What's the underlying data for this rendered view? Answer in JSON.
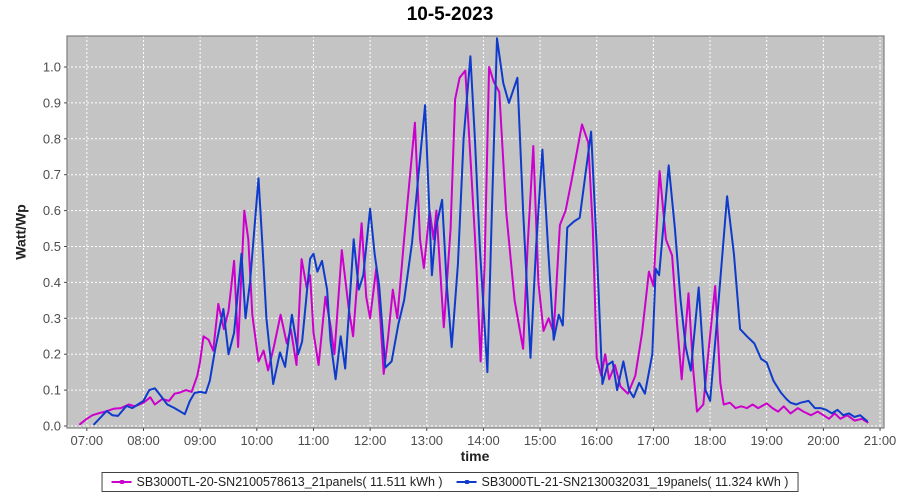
{
  "title": "10-5-2023",
  "colors": {
    "plot_background": "#C4C4C4",
    "grid": "#FFFFFF",
    "plot_border": "#7F7F7F",
    "tick_text": "#4D4D4D",
    "series_magenta": "#CC00CC",
    "series_blue": "#0F3BCC"
  },
  "chart_data": {
    "type": "line",
    "title": "10-5-2023",
    "xlabel": "time",
    "ylabel": "Watt/Wp",
    "xlim_hours": [
      6.65,
      21.07
    ],
    "ylim": [
      0,
      1.086
    ],
    "grid": true,
    "grid_style": "white-dashed",
    "legend_position": "bottom",
    "x_ticks": {
      "hours": [
        7,
        8,
        9,
        10,
        11,
        12,
        13,
        14,
        15,
        16,
        17,
        18,
        19,
        20,
        21
      ],
      "labels": [
        "07:00",
        "08:00",
        "09:00",
        "10:00",
        "11:00",
        "12:00",
        "13:00",
        "14:00",
        "15:00",
        "16:00",
        "17:00",
        "18:00",
        "19:00",
        "20:00",
        "21:00"
      ]
    },
    "y_ticks": {
      "values": [
        0,
        0.1,
        0.2,
        0.3,
        0.4,
        0.5,
        0.6,
        0.7,
        0.8,
        0.9,
        1.0
      ],
      "labels": [
        "0.0",
        "0.1",
        "0.2",
        "0.3",
        "0.4",
        "0.5",
        "0.6",
        "0.7",
        "0.8",
        "0.9",
        "1.0"
      ]
    },
    "series": [
      {
        "name": "SB3000TL-20-SN2100578613_21panels( 11.511 kWh )",
        "color": "#CC00CC",
        "points": [
          [
            6.88,
            0.005
          ],
          [
            7.0,
            0.02
          ],
          [
            7.1,
            0.03
          ],
          [
            7.2,
            0.035
          ],
          [
            7.33,
            0.04
          ],
          [
            7.47,
            0.048
          ],
          [
            7.6,
            0.05
          ],
          [
            7.74,
            0.06
          ],
          [
            7.85,
            0.055
          ],
          [
            8.0,
            0.065
          ],
          [
            8.12,
            0.08
          ],
          [
            8.2,
            0.06
          ],
          [
            8.33,
            0.075
          ],
          [
            8.45,
            0.07
          ],
          [
            8.55,
            0.09
          ],
          [
            8.64,
            0.093
          ],
          [
            8.75,
            0.1
          ],
          [
            8.85,
            0.095
          ],
          [
            8.95,
            0.14
          ],
          [
            9.0,
            0.18
          ],
          [
            9.06,
            0.25
          ],
          [
            9.15,
            0.24
          ],
          [
            9.23,
            0.21
          ],
          [
            9.32,
            0.34
          ],
          [
            9.42,
            0.27
          ],
          [
            9.5,
            0.32
          ],
          [
            9.6,
            0.46
          ],
          [
            9.67,
            0.22
          ],
          [
            9.78,
            0.6
          ],
          [
            9.85,
            0.52
          ],
          [
            9.92,
            0.31
          ],
          [
            10.03,
            0.18
          ],
          [
            10.12,
            0.21
          ],
          [
            10.2,
            0.155
          ],
          [
            10.3,
            0.22
          ],
          [
            10.42,
            0.31
          ],
          [
            10.53,
            0.23
          ],
          [
            10.6,
            0.27
          ],
          [
            10.7,
            0.17
          ],
          [
            10.79,
            0.465
          ],
          [
            10.88,
            0.385
          ],
          [
            10.94,
            0.42
          ],
          [
            11.0,
            0.26
          ],
          [
            11.09,
            0.17
          ],
          [
            11.21,
            0.36
          ],
          [
            11.3,
            0.28
          ],
          [
            11.37,
            0.2
          ],
          [
            11.5,
            0.49
          ],
          [
            11.62,
            0.33
          ],
          [
            11.7,
            0.25
          ],
          [
            11.85,
            0.565
          ],
          [
            11.93,
            0.36
          ],
          [
            12.0,
            0.3
          ],
          [
            12.11,
            0.44
          ],
          [
            12.18,
            0.3
          ],
          [
            12.24,
            0.145
          ],
          [
            12.32,
            0.25
          ],
          [
            12.4,
            0.38
          ],
          [
            12.48,
            0.3
          ],
          [
            12.6,
            0.52
          ],
          [
            12.79,
            0.845
          ],
          [
            12.88,
            0.52
          ],
          [
            12.95,
            0.44
          ],
          [
            13.05,
            0.6
          ],
          [
            13.12,
            0.52
          ],
          [
            13.17,
            0.6
          ],
          [
            13.3,
            0.275
          ],
          [
            13.42,
            0.55
          ],
          [
            13.5,
            0.91
          ],
          [
            13.58,
            0.97
          ],
          [
            13.68,
            0.99
          ],
          [
            13.78,
            0.72
          ],
          [
            13.86,
            0.5
          ],
          [
            13.95,
            0.18
          ],
          [
            14.02,
            0.45
          ],
          [
            14.1,
            1.0
          ],
          [
            14.18,
            0.96
          ],
          [
            14.28,
            0.93
          ],
          [
            14.4,
            0.6
          ],
          [
            14.55,
            0.35
          ],
          [
            14.7,
            0.215
          ],
          [
            14.78,
            0.5
          ],
          [
            14.88,
            0.78
          ],
          [
            14.97,
            0.4
          ],
          [
            15.06,
            0.265
          ],
          [
            15.15,
            0.3
          ],
          [
            15.24,
            0.26
          ],
          [
            15.35,
            0.56
          ],
          [
            15.45,
            0.6
          ],
          [
            15.55,
            0.68
          ],
          [
            15.74,
            0.84
          ],
          [
            15.85,
            0.79
          ],
          [
            15.93,
            0.55
          ],
          [
            16.0,
            0.19
          ],
          [
            16.08,
            0.14
          ],
          [
            16.15,
            0.2
          ],
          [
            16.22,
            0.13
          ],
          [
            16.32,
            0.17
          ],
          [
            16.42,
            0.11
          ],
          [
            16.55,
            0.09
          ],
          [
            16.68,
            0.14
          ],
          [
            16.8,
            0.26
          ],
          [
            16.92,
            0.43
          ],
          [
            17.0,
            0.39
          ],
          [
            17.11,
            0.71
          ],
          [
            17.22,
            0.52
          ],
          [
            17.33,
            0.475
          ],
          [
            17.42,
            0.28
          ],
          [
            17.5,
            0.13
          ],
          [
            17.62,
            0.37
          ],
          [
            17.7,
            0.16
          ],
          [
            17.77,
            0.04
          ],
          [
            17.88,
            0.06
          ],
          [
            17.98,
            0.22
          ],
          [
            18.09,
            0.39
          ],
          [
            18.18,
            0.12
          ],
          [
            18.24,
            0.06
          ],
          [
            18.35,
            0.065
          ],
          [
            18.45,
            0.05
          ],
          [
            18.55,
            0.055
          ],
          [
            18.65,
            0.05
          ],
          [
            18.75,
            0.06
          ],
          [
            18.85,
            0.05
          ],
          [
            19.0,
            0.063
          ],
          [
            19.1,
            0.05
          ],
          [
            19.2,
            0.04
          ],
          [
            19.3,
            0.055
          ],
          [
            19.42,
            0.035
          ],
          [
            19.55,
            0.05
          ],
          [
            19.65,
            0.04
          ],
          [
            19.78,
            0.03
          ],
          [
            19.9,
            0.04
          ],
          [
            20.0,
            0.03
          ],
          [
            20.1,
            0.02
          ],
          [
            20.2,
            0.035
          ],
          [
            20.3,
            0.02
          ],
          [
            20.42,
            0.03
          ],
          [
            20.55,
            0.015
          ],
          [
            20.68,
            0.02
          ],
          [
            20.78,
            0.01
          ]
        ]
      },
      {
        "name": "SB3000TL-21-SN2130032031_19panels( 11.324 kWh )",
        "color": "#0F3BCC",
        "points": [
          [
            7.13,
            0.005
          ],
          [
            7.25,
            0.025
          ],
          [
            7.35,
            0.042
          ],
          [
            7.45,
            0.03
          ],
          [
            7.55,
            0.028
          ],
          [
            7.7,
            0.056
          ],
          [
            7.8,
            0.05
          ],
          [
            7.9,
            0.06
          ],
          [
            8.0,
            0.07
          ],
          [
            8.1,
            0.1
          ],
          [
            8.2,
            0.105
          ],
          [
            8.3,
            0.085
          ],
          [
            8.42,
            0.06
          ],
          [
            8.55,
            0.05
          ],
          [
            8.73,
            0.033
          ],
          [
            8.82,
            0.07
          ],
          [
            8.9,
            0.092
          ],
          [
            9.0,
            0.095
          ],
          [
            9.1,
            0.092
          ],
          [
            9.17,
            0.126
          ],
          [
            9.26,
            0.21
          ],
          [
            9.41,
            0.326
          ],
          [
            9.5,
            0.2
          ],
          [
            9.6,
            0.26
          ],
          [
            9.73,
            0.48
          ],
          [
            9.8,
            0.3
          ],
          [
            9.88,
            0.4
          ],
          [
            10.03,
            0.69
          ],
          [
            10.1,
            0.5
          ],
          [
            10.17,
            0.3
          ],
          [
            10.29,
            0.117
          ],
          [
            10.41,
            0.205
          ],
          [
            10.5,
            0.165
          ],
          [
            10.62,
            0.31
          ],
          [
            10.73,
            0.2
          ],
          [
            10.8,
            0.235
          ],
          [
            10.94,
            0.466
          ],
          [
            11.0,
            0.48
          ],
          [
            11.07,
            0.43
          ],
          [
            11.15,
            0.46
          ],
          [
            11.24,
            0.38
          ],
          [
            11.3,
            0.237
          ],
          [
            11.39,
            0.13
          ],
          [
            11.48,
            0.25
          ],
          [
            11.56,
            0.16
          ],
          [
            11.71,
            0.52
          ],
          [
            11.8,
            0.38
          ],
          [
            11.88,
            0.42
          ],
          [
            12.0,
            0.605
          ],
          [
            12.08,
            0.48
          ],
          [
            12.16,
            0.39
          ],
          [
            12.27,
            0.163
          ],
          [
            12.38,
            0.18
          ],
          [
            12.5,
            0.284
          ],
          [
            12.6,
            0.35
          ],
          [
            12.74,
            0.51
          ],
          [
            12.97,
            0.894
          ],
          [
            13.09,
            0.42
          ],
          [
            13.16,
            0.55
          ],
          [
            13.27,
            0.63
          ],
          [
            13.35,
            0.4
          ],
          [
            13.44,
            0.22
          ],
          [
            13.55,
            0.45
          ],
          [
            13.65,
            0.8
          ],
          [
            13.77,
            1.03
          ],
          [
            13.85,
            0.8
          ],
          [
            13.94,
            0.49
          ],
          [
            14.07,
            0.15
          ],
          [
            14.15,
            0.6
          ],
          [
            14.24,
            1.08
          ],
          [
            14.35,
            0.955
          ],
          [
            14.45,
            0.9
          ],
          [
            14.6,
            0.97
          ],
          [
            14.7,
            0.6
          ],
          [
            14.83,
            0.19
          ],
          [
            14.93,
            0.5
          ],
          [
            15.04,
            0.77
          ],
          [
            15.14,
            0.5
          ],
          [
            15.24,
            0.24
          ],
          [
            15.33,
            0.31
          ],
          [
            15.4,
            0.28
          ],
          [
            15.48,
            0.553
          ],
          [
            15.6,
            0.57
          ],
          [
            15.7,
            0.58
          ],
          [
            15.8,
            0.7
          ],
          [
            15.9,
            0.82
          ],
          [
            16.0,
            0.5
          ],
          [
            16.1,
            0.117
          ],
          [
            16.19,
            0.17
          ],
          [
            16.28,
            0.18
          ],
          [
            16.36,
            0.1
          ],
          [
            16.47,
            0.18
          ],
          [
            16.57,
            0.1
          ],
          [
            16.65,
            0.08
          ],
          [
            16.75,
            0.12
          ],
          [
            16.85,
            0.09
          ],
          [
            16.98,
            0.2
          ],
          [
            17.04,
            0.438
          ],
          [
            17.1,
            0.42
          ],
          [
            17.27,
            0.726
          ],
          [
            17.38,
            0.55
          ],
          [
            17.48,
            0.35
          ],
          [
            17.57,
            0.22
          ],
          [
            17.66,
            0.154
          ],
          [
            17.8,
            0.386
          ],
          [
            17.92,
            0.1
          ],
          [
            18.0,
            0.07
          ],
          [
            18.1,
            0.25
          ],
          [
            18.3,
            0.64
          ],
          [
            18.42,
            0.48
          ],
          [
            18.53,
            0.27
          ],
          [
            18.65,
            0.25
          ],
          [
            18.78,
            0.23
          ],
          [
            18.9,
            0.187
          ],
          [
            19.0,
            0.177
          ],
          [
            19.12,
            0.126
          ],
          [
            19.25,
            0.093
          ],
          [
            19.35,
            0.075
          ],
          [
            19.42,
            0.065
          ],
          [
            19.52,
            0.06
          ],
          [
            19.6,
            0.065
          ],
          [
            19.74,
            0.07
          ],
          [
            19.85,
            0.05
          ],
          [
            19.95,
            0.05
          ],
          [
            20.05,
            0.045
          ],
          [
            20.15,
            0.035
          ],
          [
            20.25,
            0.045
          ],
          [
            20.35,
            0.03
          ],
          [
            20.45,
            0.035
          ],
          [
            20.55,
            0.025
          ],
          [
            20.65,
            0.03
          ],
          [
            20.77,
            0.014
          ]
        ]
      }
    ]
  }
}
